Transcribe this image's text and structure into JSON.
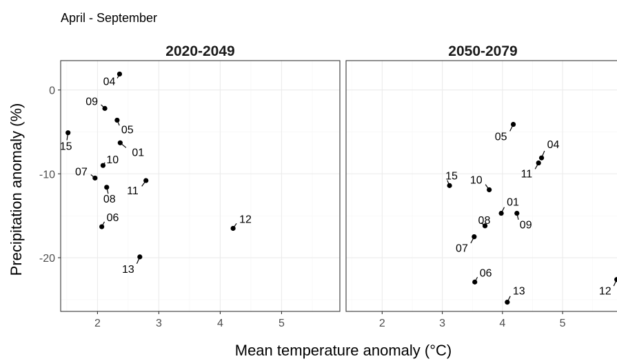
{
  "subtitle": "April - September",
  "xlabel": "Mean temperature anomaly (°C)",
  "ylabel": "Precipitation anomaly (%)",
  "chart_data": {
    "type": "scatter",
    "subtitle": "April - September",
    "xlabel": "Mean temperature anomaly (°C)",
    "ylabel": "Precipitation anomaly (%)",
    "xlim": [
      1.4,
      5.95
    ],
    "ylim": [
      -26.4,
      3.5
    ],
    "x_ticks": [
      2,
      3,
      4,
      5
    ],
    "y_ticks": [
      0,
      -10,
      -20
    ],
    "grid": true,
    "panels": [
      {
        "title": "2020-2049",
        "points": [
          {
            "label": "04",
            "x": 2.36,
            "y": 1.9
          },
          {
            "label": "09",
            "x": 2.12,
            "y": -2.2
          },
          {
            "label": "05",
            "x": 2.32,
            "y": -3.6
          },
          {
            "label": "15",
            "x": 1.52,
            "y": -5.1
          },
          {
            "label": "01",
            "x": 2.37,
            "y": -6.3
          },
          {
            "label": "10",
            "x": 2.09,
            "y": -9.0
          },
          {
            "label": "07",
            "x": 1.96,
            "y": -10.5
          },
          {
            "label": "11",
            "x": 2.79,
            "y": -10.8
          },
          {
            "label": "08",
            "x": 2.15,
            "y": -11.6
          },
          {
            "label": "06",
            "x": 2.07,
            "y": -16.3
          },
          {
            "label": "12",
            "x": 4.21,
            "y": -16.5
          },
          {
            "label": "13",
            "x": 2.69,
            "y": -19.9
          }
        ]
      },
      {
        "title": "2050-2079",
        "points": [
          {
            "label": "05",
            "x": 4.18,
            "y": -4.1
          },
          {
            "label": "04",
            "x": 4.65,
            "y": -8.1
          },
          {
            "label": "11",
            "x": 4.6,
            "y": -8.7
          },
          {
            "label": "15",
            "x": 3.12,
            "y": -11.4
          },
          {
            "label": "10",
            "x": 3.78,
            "y": -11.9
          },
          {
            "label": "01",
            "x": 3.98,
            "y": -14.7
          },
          {
            "label": "09",
            "x": 4.24,
            "y": -14.7
          },
          {
            "label": "08",
            "x": 3.71,
            "y": -16.2
          },
          {
            "label": "07",
            "x": 3.53,
            "y": -17.5
          },
          {
            "label": "06",
            "x": 3.54,
            "y": -22.9
          },
          {
            "label": "12",
            "x": 5.9,
            "y": -22.6
          },
          {
            "label": "13",
            "x": 4.08,
            "y": -25.3
          }
        ]
      }
    ]
  }
}
